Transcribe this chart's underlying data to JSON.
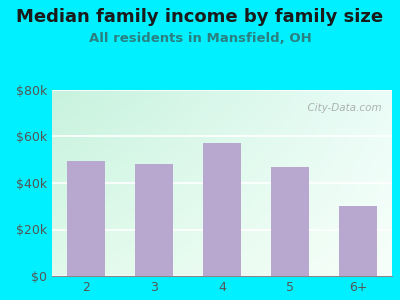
{
  "title": "Median family income by family size",
  "subtitle": "All residents in Mansfield, OH",
  "categories": [
    "2",
    "3",
    "4",
    "5",
    "6+"
  ],
  "values": [
    49500,
    48000,
    57000,
    47000,
    30000
  ],
  "bar_color": "#b8a8d0",
  "title_color": "#1a1a1a",
  "subtitle_color": "#2a8080",
  "bg_outer": "#00f0ff",
  "ylim": [
    0,
    80000
  ],
  "yticks": [
    0,
    20000,
    40000,
    60000,
    80000
  ],
  "ytick_labels": [
    "$0",
    "$20k",
    "$40k",
    "$60k",
    "$80k"
  ],
  "watermark": "  City-Data.com",
  "title_fontsize": 13,
  "subtitle_fontsize": 9.5,
  "axis_fontsize": 9,
  "tick_color": "#555555"
}
